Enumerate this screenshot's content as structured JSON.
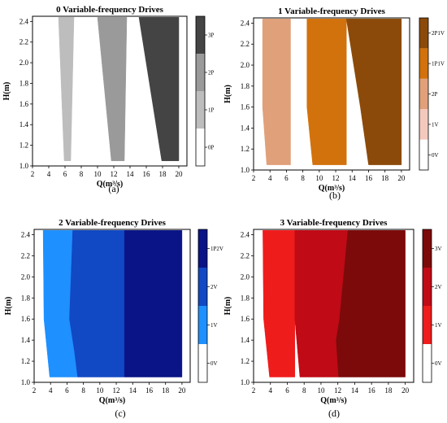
{
  "figure": {
    "panels": [
      {
        "caption": "(a)"
      },
      {
        "caption": "(b)"
      },
      {
        "caption": "(c)"
      },
      {
        "caption": "(d)"
      }
    ]
  },
  "chart_data": [
    {
      "type": "heatmap",
      "title": "0 Variable-frequency Drives",
      "xlabel": "Q(m³/s)",
      "ylabel": "H(m)",
      "xlim": [
        2,
        21
      ],
      "ylim": [
        1.0,
        2.45
      ],
      "xticks": [
        2,
        4,
        6,
        8,
        10,
        12,
        14,
        16,
        18,
        20
      ],
      "yticks": [
        1.0,
        1.2,
        1.4,
        1.6,
        1.8,
        2.0,
        2.2,
        2.4
      ],
      "colorbar": {
        "labels": [
          "0P",
          "1P",
          "2P",
          "3P"
        ],
        "colors": [
          "#ffffff",
          "#bdbdbd",
          "#9a9a9a",
          "#444444"
        ]
      },
      "regions": [
        {
          "label": "1P",
          "color": "#bdbdbd",
          "boundary": [
            [
              5.9,
              1.05
            ],
            [
              6.7,
              1.05
            ],
            [
              7.1,
              2.44
            ],
            [
              5.2,
              2.44
            ]
          ]
        },
        {
          "label": "2P",
          "color": "#9a9a9a",
          "boundary": [
            [
              11.7,
              1.05
            ],
            [
              13.3,
              1.05
            ],
            [
              13.6,
              2.44
            ],
            [
              10.0,
              2.44
            ]
          ]
        },
        {
          "label": "3P",
          "color": "#444444",
          "boundary": [
            [
              17.9,
              1.05
            ],
            [
              20.0,
              1.05
            ],
            [
              20.0,
              2.44
            ],
            [
              15.1,
              2.44
            ]
          ]
        }
      ]
    },
    {
      "type": "heatmap",
      "title": "1 Variable-frequency Drives",
      "xlabel": "Q(m³/s)",
      "ylabel": "H(m)",
      "xlim": [
        2,
        21
      ],
      "ylim": [
        1.0,
        2.45
      ],
      "xticks": [
        2,
        4,
        6,
        8,
        10,
        12,
        14,
        16,
        18,
        20
      ],
      "yticks": [
        1.0,
        1.2,
        1.4,
        1.6,
        1.8,
        2.0,
        2.2,
        2.4
      ],
      "colorbar": {
        "labels": [
          "0V",
          "1V",
          "2P",
          "1P1V",
          "2P1V"
        ],
        "colors": [
          "#ffffff",
          "#f4c9bd",
          "#e0a07a",
          "#d2720c",
          "#8c4a0a"
        ]
      },
      "regions": [
        {
          "label": "2P",
          "color": "#e0a07a",
          "boundary": [
            [
              3.6,
              1.05
            ],
            [
              6.5,
              1.05
            ],
            [
              6.5,
              2.44
            ],
            [
              3.1,
              2.44
            ],
            [
              3.1,
              1.6
            ]
          ]
        },
        {
          "label": "1P1V",
          "color": "#d2720c",
          "boundary": [
            [
              9.2,
              1.05
            ],
            [
              13.3,
              1.05
            ],
            [
              13.3,
              2.44
            ],
            [
              8.5,
              2.44
            ],
            [
              8.5,
              1.6
            ]
          ]
        },
        {
          "label": "2P1V",
          "color": "#8c4a0a",
          "boundary": [
            [
              16.0,
              1.05
            ],
            [
              20.0,
              1.05
            ],
            [
              20.0,
              2.44
            ],
            [
              13.3,
              2.44
            ],
            [
              15.0,
              1.6
            ]
          ]
        }
      ]
    },
    {
      "type": "heatmap",
      "title": "2 Variable-frequency Drives",
      "xlabel": "Q(m³/s)",
      "ylabel": "H(m)",
      "xlim": [
        2,
        21
      ],
      "ylim": [
        1.0,
        2.45
      ],
      "xticks": [
        2,
        4,
        6,
        8,
        10,
        12,
        14,
        16,
        18,
        20
      ],
      "yticks": [
        1.0,
        1.2,
        1.4,
        1.6,
        1.8,
        2.0,
        2.2,
        2.4
      ],
      "colorbar": {
        "labels": [
          "0V",
          "1V",
          "2V",
          "1P2V"
        ],
        "colors": [
          "#ffffff",
          "#1e90ff",
          "#1148c4",
          "#0a1486"
        ]
      },
      "regions": [
        {
          "label": "1V",
          "color": "#1e90ff",
          "boundary": [
            [
              3.9,
              1.05
            ],
            [
              7.3,
              1.05
            ],
            [
              6.9,
              1.3
            ],
            [
              6.3,
              1.6
            ],
            [
              6.7,
              2.44
            ],
            [
              3.1,
              2.44
            ],
            [
              3.2,
              1.6
            ]
          ]
        },
        {
          "label": "2V",
          "color": "#1148c4",
          "boundary": [
            [
              7.3,
              1.05
            ],
            [
              13.0,
              1.05
            ],
            [
              13.0,
              2.44
            ],
            [
              6.7,
              2.44
            ],
            [
              6.3,
              1.6
            ],
            [
              6.9,
              1.3
            ]
          ]
        },
        {
          "label": "1P2V",
          "color": "#0a1486",
          "boundary": [
            [
              13.0,
              1.05
            ],
            [
              20.0,
              1.05
            ],
            [
              20.0,
              2.44
            ],
            [
              13.0,
              2.44
            ]
          ]
        }
      ]
    },
    {
      "type": "heatmap",
      "title": "3 Variable-frequency Drives",
      "xlabel": "Q(m³/s)",
      "ylabel": "H(m)",
      "xlim": [
        2,
        21
      ],
      "ylim": [
        1.0,
        2.45
      ],
      "xticks": [
        2,
        4,
        6,
        8,
        10,
        12,
        14,
        16,
        18,
        20
      ],
      "yticks": [
        1.0,
        1.2,
        1.4,
        1.6,
        1.8,
        2.0,
        2.2,
        2.4
      ],
      "colorbar": {
        "labels": [
          "0V",
          "1V",
          "2V",
          "3V"
        ],
        "colors": [
          "#ffffff",
          "#ef1c1c",
          "#c00a16",
          "#7c0a0a"
        ]
      },
      "regions": [
        {
          "label": "1V",
          "color": "#ef1c1c",
          "boundary": [
            [
              3.9,
              1.05
            ],
            [
              6.9,
              1.05
            ],
            [
              6.9,
              2.44
            ],
            [
              3.1,
              2.44
            ],
            [
              3.2,
              1.6
            ]
          ]
        },
        {
          "label": "2V",
          "color": "#c00a16",
          "boundary": [
            [
              7.5,
              1.05
            ],
            [
              12.1,
              1.05
            ],
            [
              11.8,
              1.4
            ],
            [
              12.2,
              1.6
            ],
            [
              13.2,
              2.44
            ],
            [
              6.9,
              2.44
            ],
            [
              6.9,
              1.6
            ]
          ]
        },
        {
          "label": "3V",
          "color": "#7c0a0a",
          "boundary": [
            [
              12.1,
              1.05
            ],
            [
              20.0,
              1.05
            ],
            [
              20.0,
              2.44
            ],
            [
              13.2,
              2.44
            ],
            [
              12.2,
              1.6
            ],
            [
              11.8,
              1.4
            ]
          ]
        }
      ]
    }
  ]
}
